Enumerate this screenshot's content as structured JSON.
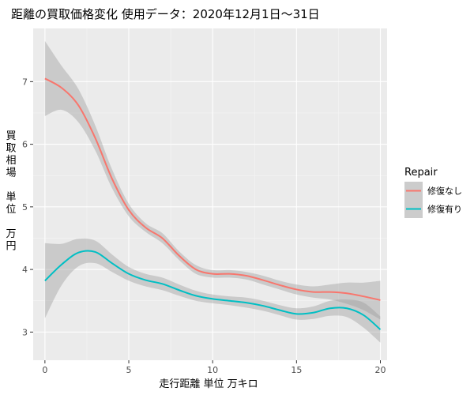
{
  "chart_data": {
    "type": "line",
    "title": "距離の買取価格変化 使用データ：2020年12月1日～31日",
    "xlabel": "走行距離 単位 万キロ",
    "ylabel_chars": [
      "買",
      "取",
      "相",
      "場",
      "",
      "単",
      "位",
      "",
      "万",
      "円"
    ],
    "xlim": [
      -0.7,
      20.4
    ],
    "ylim": [
      2.55,
      7.85
    ],
    "x_ticks": [
      0,
      5,
      10,
      15,
      20
    ],
    "y_ticks": [
      3,
      4,
      5,
      6,
      7
    ],
    "x_tick_labels": [
      "0",
      "5",
      "10",
      "15",
      "20"
    ],
    "y_tick_labels": [
      "3",
      "4",
      "5",
      "6",
      "7"
    ],
    "grid": true,
    "background": "#ebebeb",
    "band_color": "#cccccc",
    "legend": {
      "title": "Repair",
      "placement": "right"
    },
    "series": [
      {
        "name": "修復なし",
        "color": "#f8766d",
        "x": [
          0,
          1,
          2,
          3,
          4,
          5,
          6,
          7,
          8,
          9,
          10,
          11,
          12,
          13,
          14,
          15,
          16,
          17,
          18,
          19,
          20
        ],
        "y": [
          7.05,
          6.9,
          6.62,
          6.1,
          5.45,
          4.95,
          4.67,
          4.5,
          4.22,
          4.0,
          3.93,
          3.93,
          3.9,
          3.83,
          3.75,
          3.68,
          3.64,
          3.64,
          3.62,
          3.57,
          3.51
        ],
        "lower": [
          6.45,
          6.55,
          6.35,
          5.9,
          5.3,
          4.85,
          4.6,
          4.42,
          4.15,
          3.93,
          3.87,
          3.87,
          3.84,
          3.76,
          3.68,
          3.6,
          3.55,
          3.52,
          3.45,
          3.35,
          3.2
        ],
        "upper": [
          7.65,
          7.25,
          6.88,
          6.3,
          5.6,
          5.05,
          4.74,
          4.58,
          4.29,
          4.07,
          3.99,
          3.99,
          3.96,
          3.9,
          3.82,
          3.76,
          3.73,
          3.76,
          3.79,
          3.79,
          3.82
        ]
      },
      {
        "name": "修復有り",
        "color": "#00bfc4",
        "x": [
          0,
          1,
          2,
          3,
          4,
          5,
          6,
          7,
          8,
          9,
          10,
          11,
          12,
          13,
          14,
          15,
          16,
          17,
          18,
          19,
          20
        ],
        "y": [
          3.82,
          4.08,
          4.27,
          4.28,
          4.1,
          3.93,
          3.83,
          3.77,
          3.67,
          3.58,
          3.53,
          3.5,
          3.47,
          3.42,
          3.35,
          3.29,
          3.31,
          3.38,
          3.38,
          3.27,
          3.04
        ],
        "lower": [
          3.22,
          3.75,
          4.05,
          4.1,
          3.96,
          3.82,
          3.73,
          3.67,
          3.58,
          3.5,
          3.46,
          3.43,
          3.39,
          3.34,
          3.27,
          3.2,
          3.21,
          3.26,
          3.24,
          3.07,
          2.83
        ],
        "upper": [
          4.42,
          4.41,
          4.49,
          4.46,
          4.24,
          4.04,
          3.93,
          3.87,
          3.76,
          3.66,
          3.6,
          3.57,
          3.55,
          3.5,
          3.43,
          3.38,
          3.41,
          3.5,
          3.52,
          3.47,
          3.25
        ]
      }
    ]
  }
}
